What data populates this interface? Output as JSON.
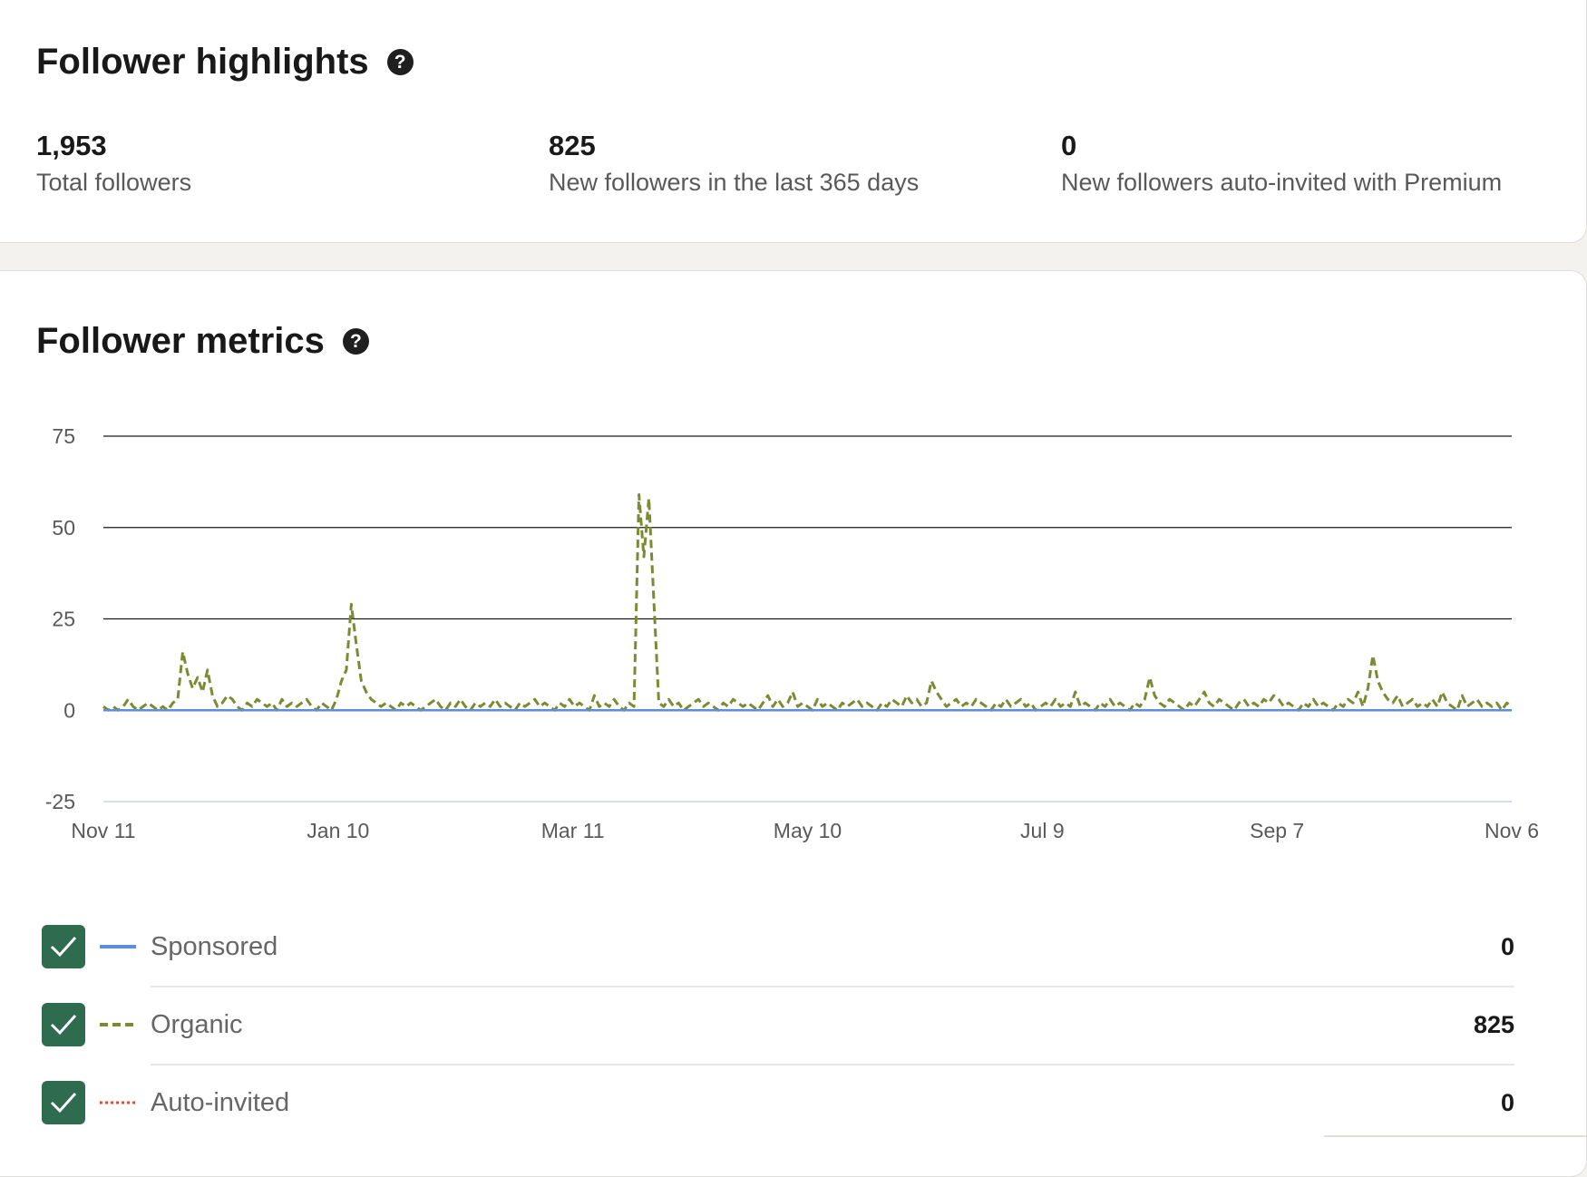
{
  "highlights": {
    "title": "Follower highlights",
    "help_glyph": "?",
    "stats": [
      {
        "value": "1,953",
        "label": "Total followers"
      },
      {
        "value": "825",
        "label": "New followers in the last 365 days"
      },
      {
        "value": "0",
        "label": "New followers auto-invited with Premium"
      }
    ]
  },
  "metrics": {
    "title": "Follower metrics",
    "help_glyph": "?",
    "legend": [
      {
        "label": "Sponsored",
        "value": "0",
        "color": "#5b8fd9",
        "style": "solid",
        "checked": true
      },
      {
        "label": "Organic",
        "value": "825",
        "color": "#7b8b33",
        "style": "dashed",
        "checked": true
      },
      {
        "label": "Auto-invited",
        "value": "0",
        "color": "#d0543a",
        "style": "dotted",
        "checked": true
      }
    ]
  },
  "chart_data": {
    "type": "line",
    "x_tick_labels": [
      "Nov 11",
      "Jan 10",
      "Mar 11",
      "May 10",
      "Jul 9",
      "Sep 7",
      "Nov 6"
    ],
    "x_range": [
      "Nov 11",
      "Nov 6"
    ],
    "ylim": [
      -25,
      75
    ],
    "y_ticks": [
      75,
      50,
      25,
      0,
      -25
    ],
    "grid": true,
    "legend_placement": "bottom",
    "series": [
      {
        "name": "Sponsored",
        "color": "#5b8fd9",
        "style": "solid",
        "values": [
          0,
          0
        ]
      },
      {
        "name": "Organic",
        "color": "#7b8b33",
        "style": "dashed",
        "values": [
          1,
          0,
          1,
          0,
          1,
          3,
          1,
          0,
          1,
          2,
          1,
          0,
          1,
          0,
          2,
          3,
          16,
          10,
          6,
          9,
          5,
          11,
          4,
          1,
          2,
          4,
          3,
          1,
          0,
          2,
          1,
          3,
          2,
          1,
          2,
          0,
          3,
          1,
          2,
          1,
          2,
          3,
          1,
          0,
          2,
          1,
          0,
          3,
          8,
          11,
          29,
          18,
          8,
          5,
          3,
          2,
          1,
          2,
          1,
          0,
          2,
          1,
          2,
          1,
          0,
          1,
          2,
          3,
          1,
          0,
          2,
          1,
          3,
          1,
          0,
          2,
          1,
          2,
          1,
          3,
          1,
          2,
          1,
          0,
          2,
          1,
          2,
          3,
          1,
          2,
          1,
          0,
          2,
          1,
          3,
          1,
          2,
          1,
          0,
          4,
          1,
          2,
          1,
          3,
          1,
          0,
          2,
          1,
          59,
          42,
          58,
          30,
          2,
          1,
          3,
          1,
          2,
          0,
          1,
          2,
          3,
          1,
          2,
          1,
          0,
          2,
          1,
          3,
          2,
          1,
          2,
          1,
          0,
          2,
          4,
          1,
          3,
          1,
          2,
          5,
          1,
          2,
          1,
          0,
          3,
          1,
          2,
          1,
          0,
          2,
          1,
          2,
          3,
          1,
          2,
          1,
          0,
          2,
          1,
          3,
          2,
          1,
          4,
          2,
          3,
          1,
          2,
          8,
          5,
          3,
          1,
          2,
          3,
          1,
          2,
          1,
          3,
          2,
          1,
          0,
          2,
          1,
          3,
          1,
          2,
          3,
          1,
          2,
          0,
          1,
          2,
          1,
          3,
          1,
          2,
          1,
          5,
          1,
          2,
          1,
          0,
          2,
          1,
          3,
          1,
          2,
          1,
          0,
          2,
          1,
          3,
          9,
          4,
          2,
          1,
          3,
          2,
          1,
          0,
          2,
          1,
          3,
          5,
          2,
          1,
          3,
          2,
          1,
          0,
          2,
          3,
          1,
          2,
          1,
          3,
          2,
          4,
          3,
          1,
          2,
          1,
          0,
          2,
          1,
          3,
          1,
          2,
          1,
          0,
          2,
          1,
          3,
          2,
          5,
          1,
          6,
          15,
          8,
          5,
          3,
          2,
          4,
          1,
          2,
          3,
          1,
          2,
          1,
          3,
          1,
          5,
          2,
          1,
          0,
          4,
          1,
          2,
          3,
          1,
          2,
          1,
          2,
          0,
          2,
          1
        ]
      },
      {
        "name": "Auto-invited",
        "color": "#d0543a",
        "style": "dotted",
        "values": [
          0,
          0
        ]
      }
    ]
  }
}
